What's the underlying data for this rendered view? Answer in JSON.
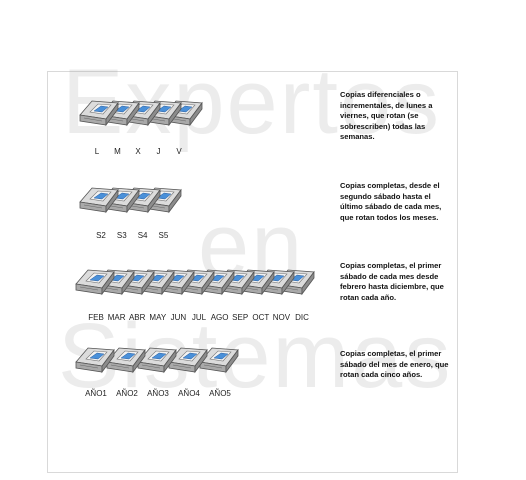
{
  "watermark": {
    "line1": "Expertos",
    "line2": "en",
    "line3": "Sistemas"
  },
  "rows": [
    {
      "labels": [
        "L",
        "M",
        "X",
        "J",
        "V"
      ],
      "description": "Copias diferenciales o incrementales, de lunes a viernes, que rotan (se sobrescriben) todas las semanas."
    },
    {
      "labels": [
        "S2",
        "S3",
        "S4",
        "S5"
      ],
      "description": "Copias completas, desde el segundo sábado hasta el último sábado de cada mes, que rotan todos los meses."
    },
    {
      "labels": [
        "FEB",
        "MAR",
        "ABR",
        "MAY",
        "JUN",
        "JUL",
        "AGO",
        "SEP",
        "OCT",
        "NOV",
        "DIC"
      ],
      "description": "Copias completas, el primer sábado de cada mes desde febrero hasta diciembre, que rotan cada año."
    },
    {
      "labels": [
        "AÑO1",
        "AÑO2",
        "AÑO3",
        "AÑO4",
        "AÑO5"
      ],
      "description": "Copias completas, el primer sábado del mes de enero, que rotan cada cinco años."
    }
  ],
  "icons": {
    "tape": "backup-tape-icon"
  }
}
